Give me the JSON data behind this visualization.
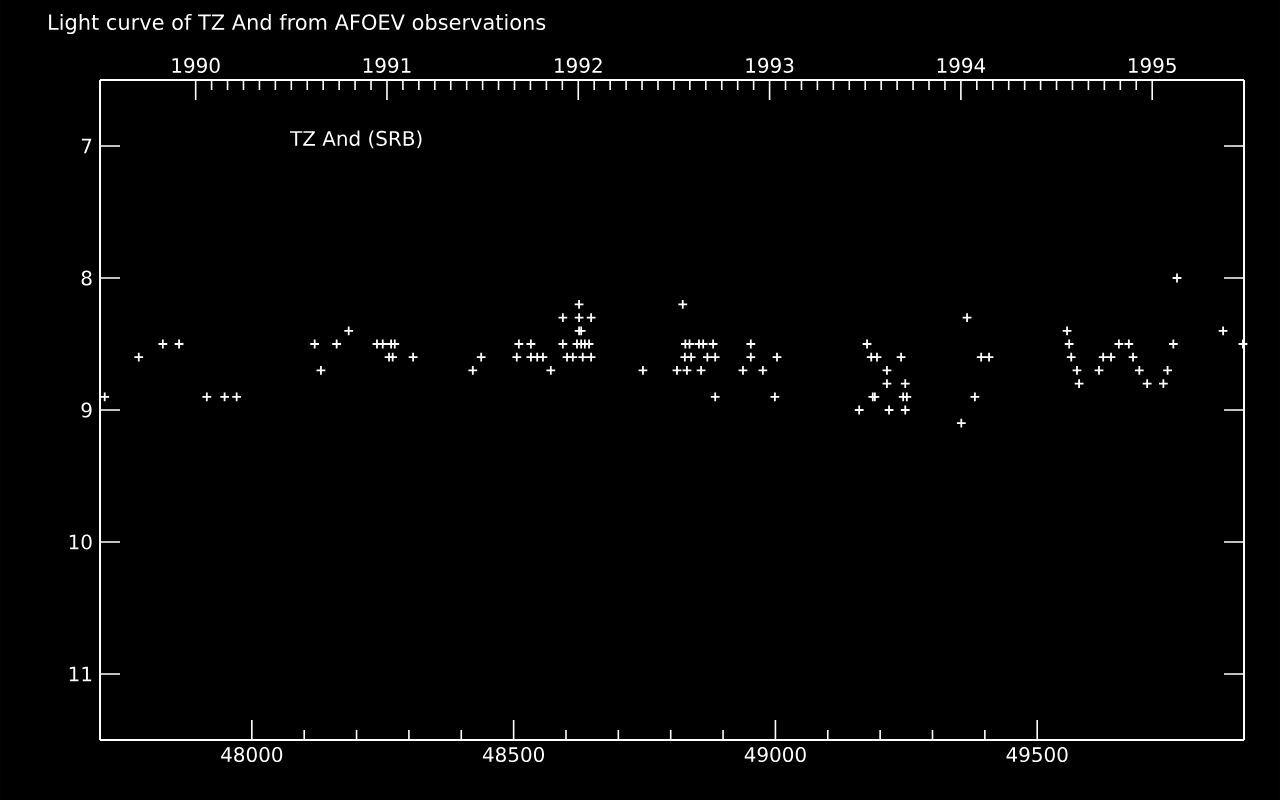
{
  "chart_data": {
    "type": "scatter",
    "title": "Light curve of TZ And from AFOEV observations",
    "annotations": [
      "TZ And (SRB)"
    ],
    "x": [
      47719,
      47784,
      47830,
      47861,
      47914,
      47948,
      47971,
      48120,
      48132,
      48162,
      48185,
      48239,
      48250,
      48266,
      48273,
      48262,
      48269,
      48308,
      48422,
      48438,
      48506,
      48510,
      48533,
      48533,
      48545,
      48556,
      48571,
      48594,
      48594,
      48625,
      48625,
      48648,
      48625,
      48629,
      48621,
      48629,
      48636,
      48644,
      48602,
      48613,
      48632,
      48648,
      48747,
      48812,
      48823,
      48831,
      48858,
      48827,
      48839,
      48828,
      48836,
      48854,
      48862,
      48870,
      48885,
      48881,
      48885,
      48938,
      48953,
      48953,
      48976,
      48999,
      49003,
      49160,
      49175,
      49183,
      49194,
      49186,
      49190,
      49213,
      49213,
      49217,
      49240,
      49248,
      49244,
      49251,
      49248,
      49355,
      49366,
      49381,
      49393,
      49408,
      49557,
      49561,
      49565,
      49576,
      49580,
      49618,
      49626,
      49641,
      49656,
      49675,
      49683,
      49695,
      49710,
      49741,
      49749,
      49760,
      49767,
      49855,
      49893
    ],
    "values": [
      8.9,
      8.6,
      8.5,
      8.5,
      8.9,
      8.9,
      8.9,
      8.5,
      8.7,
      8.5,
      8.4,
      8.5,
      8.5,
      8.5,
      8.5,
      8.6,
      8.6,
      8.6,
      8.7,
      8.6,
      8.6,
      8.5,
      8.5,
      8.6,
      8.6,
      8.6,
      8.7,
      8.3,
      8.5,
      8.2,
      8.3,
      8.3,
      8.4,
      8.4,
      8.5,
      8.5,
      8.5,
      8.5,
      8.6,
      8.6,
      8.6,
      8.6,
      8.7,
      8.7,
      8.2,
      8.7,
      8.7,
      8.6,
      8.6,
      8.5,
      8.5,
      8.5,
      8.5,
      8.6,
      8.6,
      8.5,
      8.9,
      8.7,
      8.5,
      8.6,
      8.7,
      8.9,
      8.6,
      9.0,
      8.5,
      8.6,
      8.6,
      8.9,
      8.9,
      8.7,
      8.8,
      9.0,
      8.6,
      8.8,
      8.9,
      8.9,
      9.0,
      9.1,
      8.3,
      8.9,
      8.6,
      8.6,
      8.4,
      8.5,
      8.6,
      8.7,
      8.8,
      8.7,
      8.6,
      8.6,
      8.5,
      8.5,
      8.6,
      8.7,
      8.8,
      8.8,
      8.7,
      8.5,
      8.0,
      8.4,
      8.5
    ],
    "color": "#ffffff",
    "marker": "cross",
    "xlim": [
      47710,
      49895
    ],
    "xticks": [
      48000,
      48500,
      49000,
      49500
    ],
    "ylim": [
      11.5,
      6.5
    ],
    "yticks": [
      7,
      8,
      9,
      10,
      11
    ],
    "x2lim": [
      1989.5,
      1995.48
    ],
    "x2ticks": [
      1990,
      1991,
      1992,
      1993,
      1994,
      1995
    ]
  }
}
